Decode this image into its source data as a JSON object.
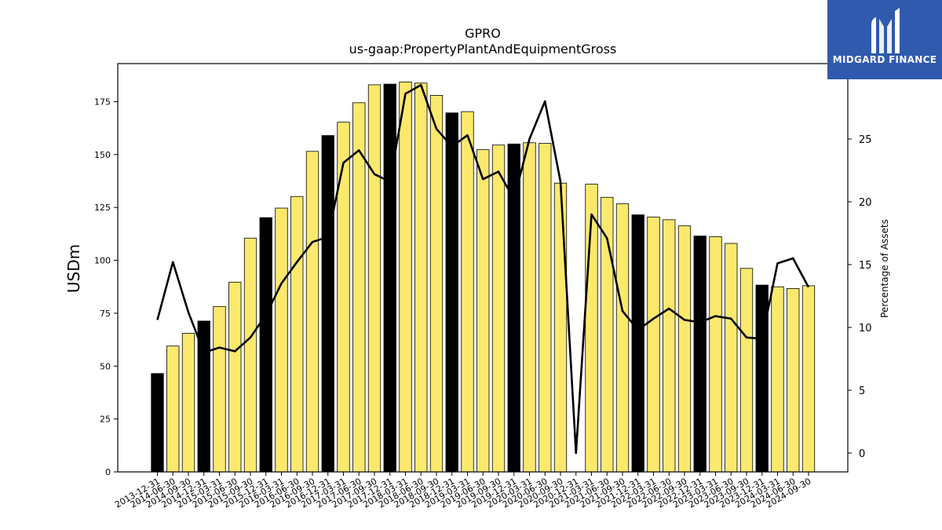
{
  "chart_data": {
    "type": "bar",
    "title": "GPRO",
    "subtitle": "us-gaap:PropertyPlantAndEquipmentGross",
    "ylabel": "USDm",
    "y2label": "Percentage of Assets",
    "ylim": [
      0,
      193
    ],
    "y2lim": [
      -1.5,
      31
    ],
    "yticks": [
      0,
      25,
      50,
      75,
      100,
      125,
      150,
      175
    ],
    "y2ticks": [
      0,
      5,
      10,
      15,
      20,
      25
    ],
    "categories": [
      "2013-12-31",
      "2014-06-30",
      "2014-09-30",
      "2014-12-31",
      "2015-03-31",
      "2015-06-30",
      "2015-09-30",
      "2015-12-31",
      "2016-03-31",
      "2016-06-30",
      "2016-09-30",
      "2016-12-31",
      "2017-03-31",
      "2017-06-30",
      "2017-09-30",
      "2017-12-31",
      "2018-03-31",
      "2018-06-30",
      "2018-09-30",
      "2018-12-31",
      "2019-03-31",
      "2019-06-30",
      "2019-09-30",
      "2019-12-31",
      "2020-03-31",
      "2020-06-30",
      "2020-09-30",
      "2020-12-31",
      "2021-03-31",
      "2021-06-30",
      "2021-09-30",
      "2021-12-31",
      "2022-03-31",
      "2022-06-30",
      "2022-09-30",
      "2022-12-31",
      "2023-03-31",
      "2023-06-30",
      "2023-09-30",
      "2023-12-31",
      "2024-03-31",
      "2024-06-30",
      "2024-09-30"
    ],
    "series": [
      {
        "type": "bar",
        "values": [
          46.5,
          59.5,
          65.5,
          71.3,
          78.2,
          89.7,
          110.5,
          120.2,
          124.7,
          130.2,
          151.5,
          159.0,
          165.3,
          174.5,
          183.0,
          183.3,
          184.3,
          183.8,
          178.0,
          169.7,
          170.3,
          152.3,
          154.5,
          155.0,
          155.6,
          155.3,
          136.5,
          0,
          136.0,
          129.8,
          126.7,
          121.5,
          120.5,
          119.2,
          116.3,
          111.5,
          111.2,
          108.0,
          96.2,
          88.3,
          87.5,
          86.7,
          88.0
        ],
        "year_end_color": "#000000",
        "quarter_color": "#fbe96e"
      },
      {
        "type": "line",
        "axis": "right",
        "color": "#000000",
        "values": [
          10.6,
          15.2,
          11.2,
          8.0,
          8.4,
          8.1,
          9.2,
          11.0,
          13.5,
          15.2,
          16.8,
          17.2,
          23.1,
          24.1,
          22.2,
          21.6,
          28.6,
          29.3,
          25.8,
          24.4,
          25.3,
          21.8,
          22.4,
          20.2,
          25.0,
          28.0,
          21.6,
          0.0,
          19.0,
          17.1,
          11.3,
          9.8,
          10.7,
          11.5,
          10.6,
          10.4,
          10.9,
          10.7,
          9.2,
          9.1,
          15.1,
          15.5,
          13.2
        ]
      }
    ],
    "grid": false,
    "legend": "none"
  },
  "logo": {
    "text": "MIDGARD FINANCE"
  }
}
